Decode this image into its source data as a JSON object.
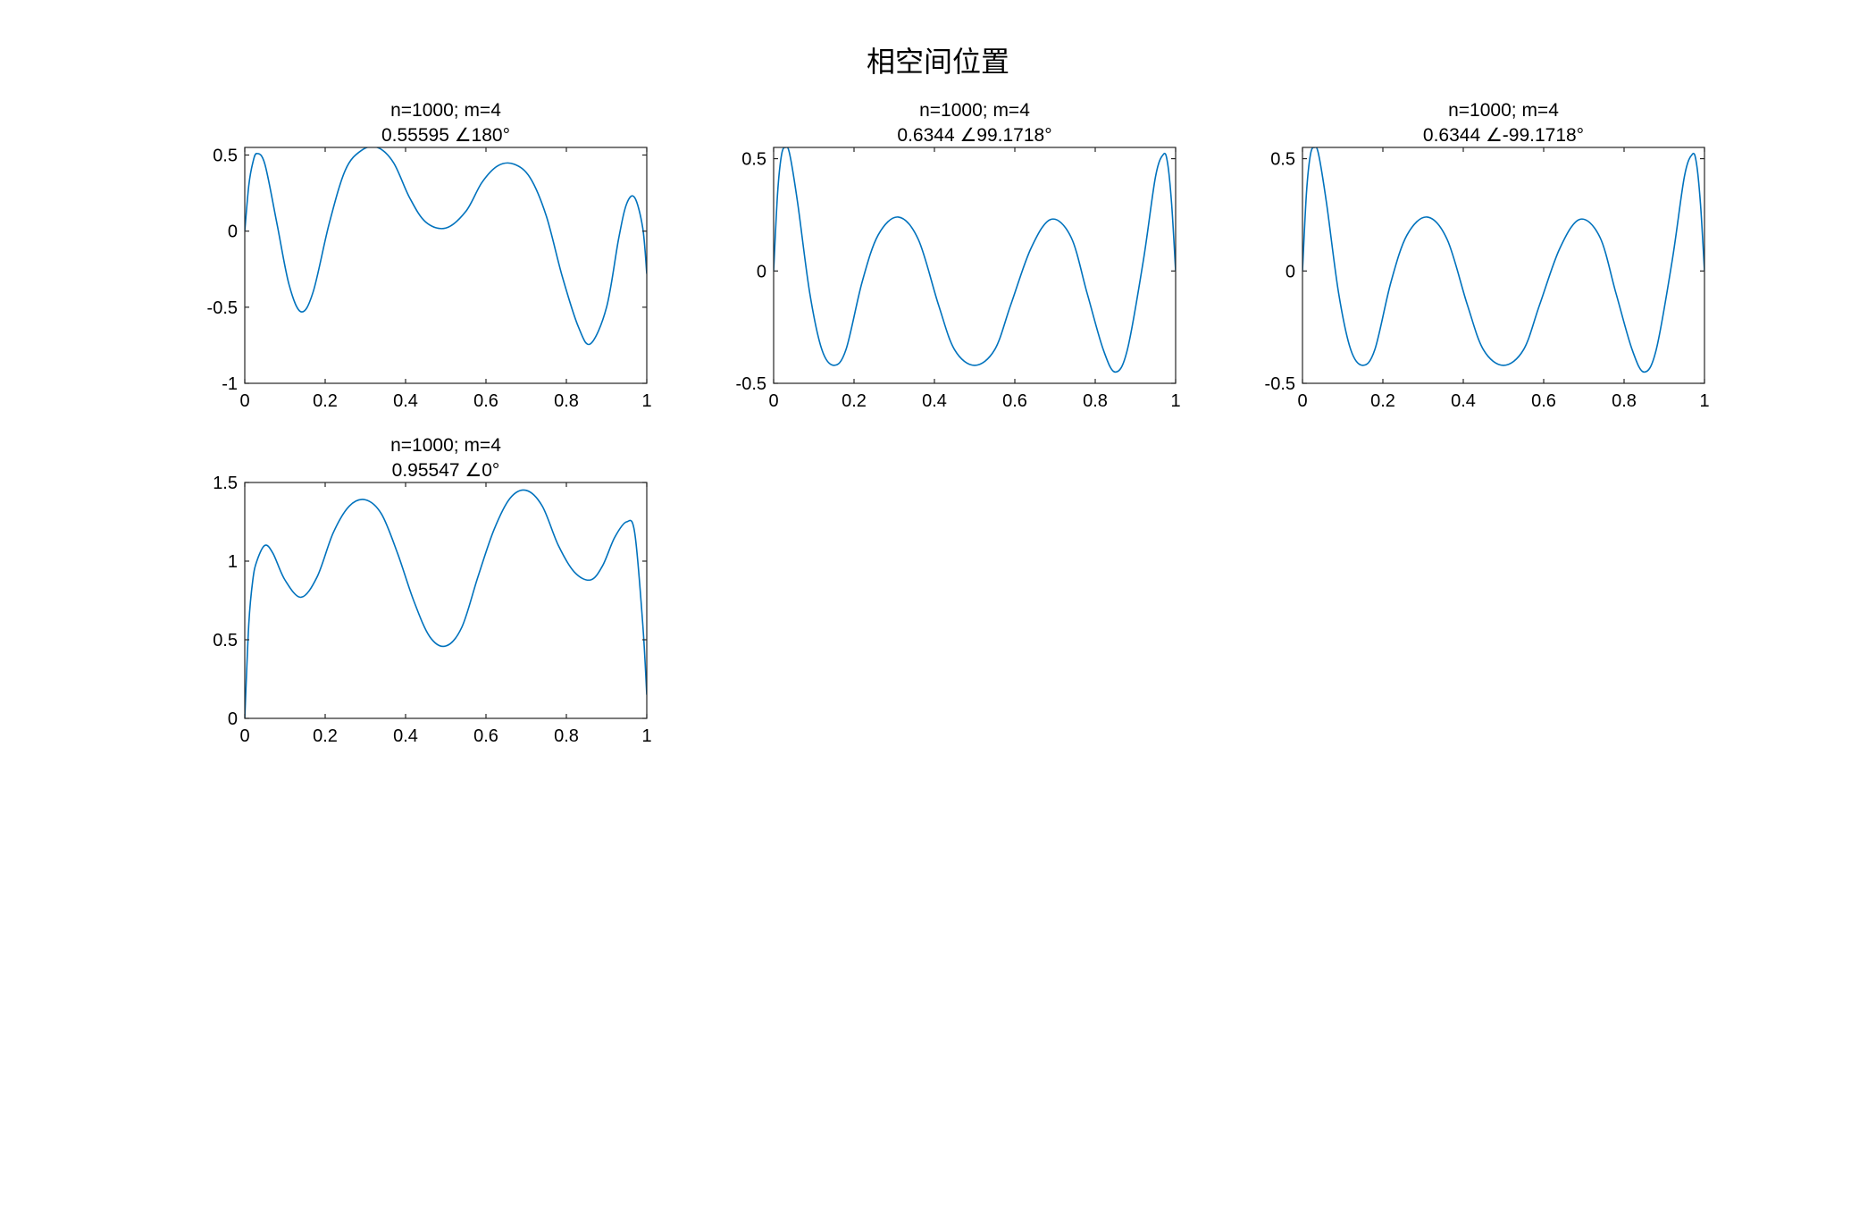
{
  "figure": {
    "title": "相空间位置"
  },
  "colors": {
    "line": "#0072BD",
    "axis": "#262626",
    "background": "#ffffff"
  },
  "chart_data": [
    {
      "type": "line",
      "title": [
        "n=1000; m=4",
        "0.55595 ∠180°"
      ],
      "xlim": [
        0,
        1
      ],
      "ylim": [
        -1,
        0.55
      ],
      "xticks": [
        0,
        0.2,
        0.4,
        0.6,
        0.8,
        1
      ],
      "xtick_labels": [
        "0",
        "0.2",
        "0.4",
        "0.6",
        "0.8",
        "1"
      ],
      "yticks": [
        -1,
        -0.5,
        0,
        0.5
      ],
      "ytick_labels": [
        "-1",
        "-0.5",
        "0",
        "0.5"
      ],
      "grid": false,
      "series": [
        {
          "x": [
            0,
            0.01,
            0.02,
            0.03,
            0.05,
            0.08,
            0.11,
            0.14,
            0.17,
            0.21,
            0.25,
            0.29,
            0.33,
            0.37,
            0.41,
            0.45,
            0.5,
            0.55,
            0.59,
            0.63,
            0.67,
            0.71,
            0.75,
            0.79,
            0.83,
            0.86,
            0.9,
            0.93,
            0.95,
            0.97,
            0.99,
            1
          ],
          "y": [
            0,
            0.3,
            0.45,
            0.51,
            0.44,
            0.05,
            -0.35,
            -0.53,
            -0.4,
            0.05,
            0.4,
            0.53,
            0.55,
            0.45,
            0.22,
            0.06,
            0.02,
            0.13,
            0.32,
            0.43,
            0.44,
            0.35,
            0.1,
            -0.3,
            -0.63,
            -0.74,
            -0.5,
            -0.05,
            0.18,
            0.22,
            0.02,
            -0.28
          ]
        }
      ]
    },
    {
      "type": "line",
      "title": [
        "n=1000; m=4",
        "0.6344 ∠99.1718°"
      ],
      "xlim": [
        0,
        1
      ],
      "ylim": [
        -0.5,
        0.55
      ],
      "xticks": [
        0,
        0.2,
        0.4,
        0.6,
        0.8,
        1
      ],
      "xtick_labels": [
        "0",
        "0.2",
        "0.4",
        "0.6",
        "0.8",
        "1"
      ],
      "yticks": [
        -0.5,
        0,
        0.5
      ],
      "ytick_labels": [
        "-0.5",
        "0",
        "0.5"
      ],
      "grid": false,
      "series": [
        {
          "x": [
            0,
            0.01,
            0.02,
            0.03,
            0.04,
            0.06,
            0.09,
            0.12,
            0.15,
            0.18,
            0.22,
            0.26,
            0.31,
            0.36,
            0.41,
            0.45,
            0.5,
            0.55,
            0.59,
            0.64,
            0.69,
            0.74,
            0.78,
            0.82,
            0.85,
            0.88,
            0.92,
            0.95,
            0.97,
            0.98,
            0.99,
            1
          ],
          "y": [
            0,
            0.35,
            0.52,
            0.55,
            0.52,
            0.3,
            -0.1,
            -0.35,
            -0.42,
            -0.35,
            -0.05,
            0.16,
            0.24,
            0.14,
            -0.15,
            -0.35,
            -0.42,
            -0.35,
            -0.15,
            0.1,
            0.23,
            0.15,
            -0.1,
            -0.35,
            -0.45,
            -0.35,
            0.05,
            0.42,
            0.52,
            0.48,
            0.3,
            0
          ]
        }
      ]
    },
    {
      "type": "line",
      "title": [
        "n=1000; m=4",
        "0.6344 ∠-99.1718°"
      ],
      "xlim": [
        0,
        1
      ],
      "ylim": [
        -0.5,
        0.55
      ],
      "xticks": [
        0,
        0.2,
        0.4,
        0.6,
        0.8,
        1
      ],
      "xtick_labels": [
        "0",
        "0.2",
        "0.4",
        "0.6",
        "0.8",
        "1"
      ],
      "yticks": [
        -0.5,
        0,
        0.5
      ],
      "ytick_labels": [
        "-0.5",
        "0",
        "0.5"
      ],
      "grid": false,
      "series": [
        {
          "x": [
            0,
            0.01,
            0.02,
            0.03,
            0.04,
            0.06,
            0.09,
            0.12,
            0.15,
            0.18,
            0.22,
            0.26,
            0.31,
            0.36,
            0.41,
            0.45,
            0.5,
            0.55,
            0.59,
            0.64,
            0.69,
            0.74,
            0.78,
            0.82,
            0.85,
            0.88,
            0.92,
            0.95,
            0.97,
            0.98,
            0.99,
            1
          ],
          "y": [
            0,
            0.35,
            0.52,
            0.55,
            0.52,
            0.3,
            -0.1,
            -0.35,
            -0.42,
            -0.35,
            -0.05,
            0.16,
            0.24,
            0.14,
            -0.15,
            -0.35,
            -0.42,
            -0.35,
            -0.15,
            0.1,
            0.23,
            0.15,
            -0.1,
            -0.35,
            -0.45,
            -0.35,
            0.05,
            0.42,
            0.52,
            0.48,
            0.3,
            0
          ]
        }
      ]
    },
    {
      "type": "line",
      "title": [
        "n=1000; m=4",
        "0.95547 ∠0°"
      ],
      "xlim": [
        0,
        1
      ],
      "ylim": [
        0,
        1.5
      ],
      "xticks": [
        0,
        0.2,
        0.4,
        0.6,
        0.8,
        1
      ],
      "xtick_labels": [
        "0",
        "0.2",
        "0.4",
        "0.6",
        "0.8",
        "1"
      ],
      "yticks": [
        0,
        0.5,
        1,
        1.5
      ],
      "ytick_labels": [
        "0",
        "0.5",
        "1",
        "1.5"
      ],
      "grid": false,
      "series": [
        {
          "x": [
            0,
            0.01,
            0.02,
            0.03,
            0.05,
            0.07,
            0.1,
            0.14,
            0.18,
            0.22,
            0.26,
            0.3,
            0.34,
            0.38,
            0.42,
            0.46,
            0.5,
            0.54,
            0.58,
            0.62,
            0.66,
            0.7,
            0.74,
            0.78,
            0.82,
            0.86,
            0.89,
            0.92,
            0.95,
            0.97,
            0.99,
            1
          ],
          "y": [
            0,
            0.6,
            0.88,
            1.0,
            1.1,
            1.05,
            0.88,
            0.77,
            0.9,
            1.18,
            1.35,
            1.39,
            1.3,
            1.05,
            0.75,
            0.52,
            0.46,
            0.58,
            0.9,
            1.2,
            1.4,
            1.45,
            1.35,
            1.1,
            0.93,
            0.88,
            0.97,
            1.15,
            1.25,
            1.18,
            0.6,
            0.15
          ]
        }
      ]
    }
  ]
}
